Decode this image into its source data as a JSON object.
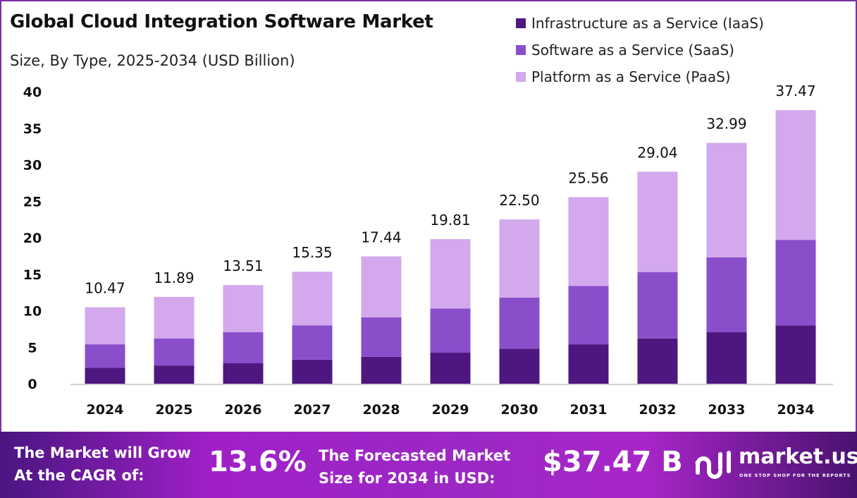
{
  "chart_data": {
    "type": "bar",
    "stacked": true,
    "title": "Global Cloud Integration Software Market",
    "subtitle": "Size, By Type, 2025-2034 (USD Billion)",
    "categories": [
      "2024",
      "2025",
      "2026",
      "2027",
      "2028",
      "2029",
      "2030",
      "2031",
      "2032",
      "2033",
      "2034"
    ],
    "series": [
      {
        "name": "Infrastructure as a Service (IaaS)",
        "color": "#4e1780",
        "values": [
          2.2,
          2.5,
          2.8,
          3.3,
          3.7,
          4.25,
          4.8,
          5.4,
          6.2,
          7.05,
          8.0
        ]
      },
      {
        "name": "Software as a Service (SaaS)",
        "color": "#8a4ecb",
        "values": [
          3.2,
          3.7,
          4.25,
          4.7,
          5.4,
          6.05,
          7.0,
          8.0,
          9.1,
          10.25,
          11.7
        ]
      },
      {
        "name": "Platform as a Service (PaaS)",
        "color": "#d3a8ec",
        "values": [
          5.07,
          5.69,
          6.46,
          7.35,
          8.34,
          9.51,
          10.7,
          12.16,
          13.74,
          15.69,
          17.77
        ]
      }
    ],
    "totals": [
      "10.47",
      "11.89",
      "13.51",
      "15.35",
      "17.44",
      "19.81",
      "22.50",
      "25.56",
      "29.04",
      "32.99",
      "37.47"
    ],
    "yticks": [
      "0",
      "5",
      "10",
      "15",
      "20",
      "25",
      "30",
      "35",
      "40"
    ],
    "ylim": [
      0,
      40
    ],
    "grid": false,
    "legend": "top-right"
  },
  "footer": {
    "cagr_label_1": "The Market will Grow",
    "cagr_label_2": "At the CAGR of:",
    "cagr_value": "13.6%",
    "forecast_label_1": "The Forecasted Market",
    "forecast_label_2": "Size for 2034 in USD:",
    "forecast_value": "$37.47 B",
    "logo_text": "market.us",
    "logo_tagline": "ONE STOP SHOP FOR THE REPORTS"
  }
}
